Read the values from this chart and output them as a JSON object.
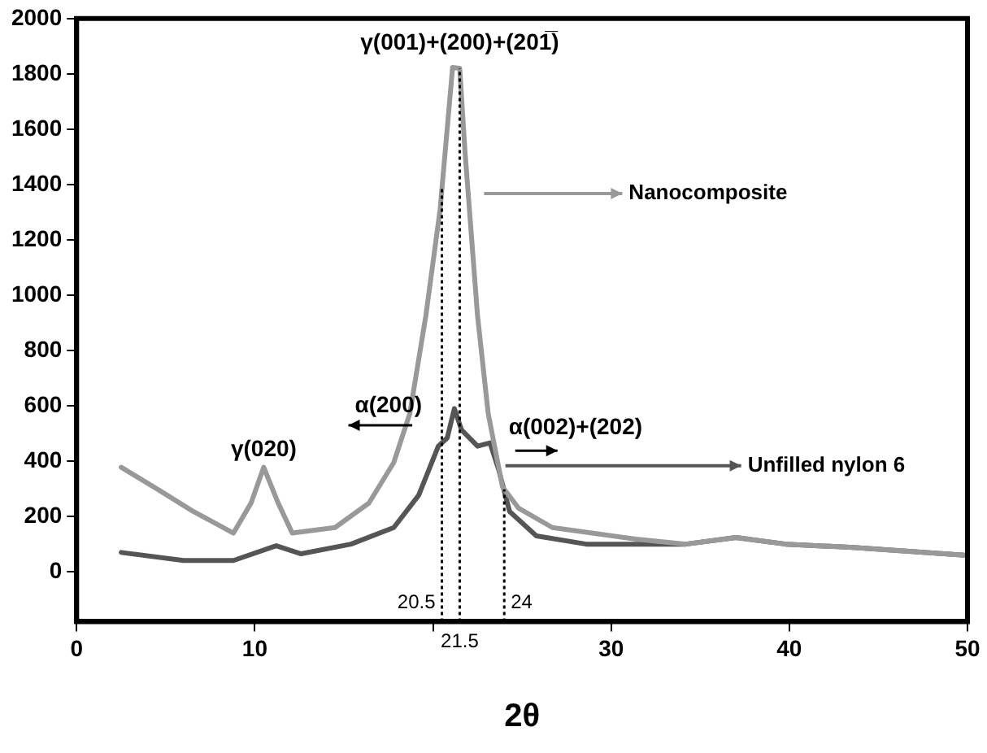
{
  "chart_data": {
    "type": "line",
    "xlabel": "2θ",
    "xlim": [
      0,
      50
    ],
    "xticks": [
      0,
      10,
      {
        "value": 20,
        "label": null
      },
      30,
      40,
      50
    ],
    "ylim": [
      -180,
      2000
    ],
    "yticks": [
      0,
      200,
      400,
      600,
      800,
      1000,
      1200,
      1400,
      1600,
      1800,
      2000
    ],
    "grid": false,
    "legend": "right",
    "marker": "none",
    "line_style": "solid",
    "series": [
      {
        "name": "Nanocomposite",
        "color": "#999999",
        "x": [
          2.5,
          4.5,
          6.5,
          8.8,
          9.8,
          10.5,
          11.3,
          12.1,
          14.5,
          16.4,
          17.8,
          18.7,
          19.6,
          20.4,
          21.1,
          21.5,
          21.8,
          22.5,
          23.1,
          23.9,
          24.8,
          26.7,
          31.4,
          34.2,
          37,
          39.8,
          43.6,
          50
        ],
        "values": [
          378,
          300,
          220,
          140,
          250,
          378,
          250,
          140,
          160,
          248,
          395,
          572,
          926,
          1310,
          1823,
          1820,
          1516,
          926,
          572,
          307,
          230,
          160,
          118,
          100,
          124,
          100,
          88,
          59
        ]
      },
      {
        "name": "Unfilled nylon 6",
        "color": "#555555",
        "x": [
          2.5,
          6,
          8.8,
          11.2,
          12.6,
          15.4,
          17.8,
          19.2,
          20.3,
          20.8,
          21.2,
          21.6,
          22.5,
          23.2,
          23.7,
          24.3,
          25.8,
          28.6,
          34.2,
          37,
          39.8,
          43.6,
          50
        ],
        "values": [
          70,
          41,
          41,
          94,
          65,
          100,
          160,
          277,
          454,
          484,
          590,
          513,
          454,
          466,
          366,
          218,
          130,
          100,
          100,
          124,
          100,
          88,
          59
        ]
      }
    ],
    "ref_lines": [
      {
        "axis": "x",
        "value": 20.5,
        "label": "20.5",
        "line_style": "dotted"
      },
      {
        "axis": "x",
        "value": 21.5,
        "label": "21.5",
        "line_style": "dotted"
      },
      {
        "axis": "x",
        "value": 24,
        "label": "24",
        "line_style": "dotted"
      }
    ],
    "annotations": [
      "γ(001)+(200)+(201̅)",
      "γ(020)",
      "α(200)",
      "α(002)+(202)"
    ]
  }
}
